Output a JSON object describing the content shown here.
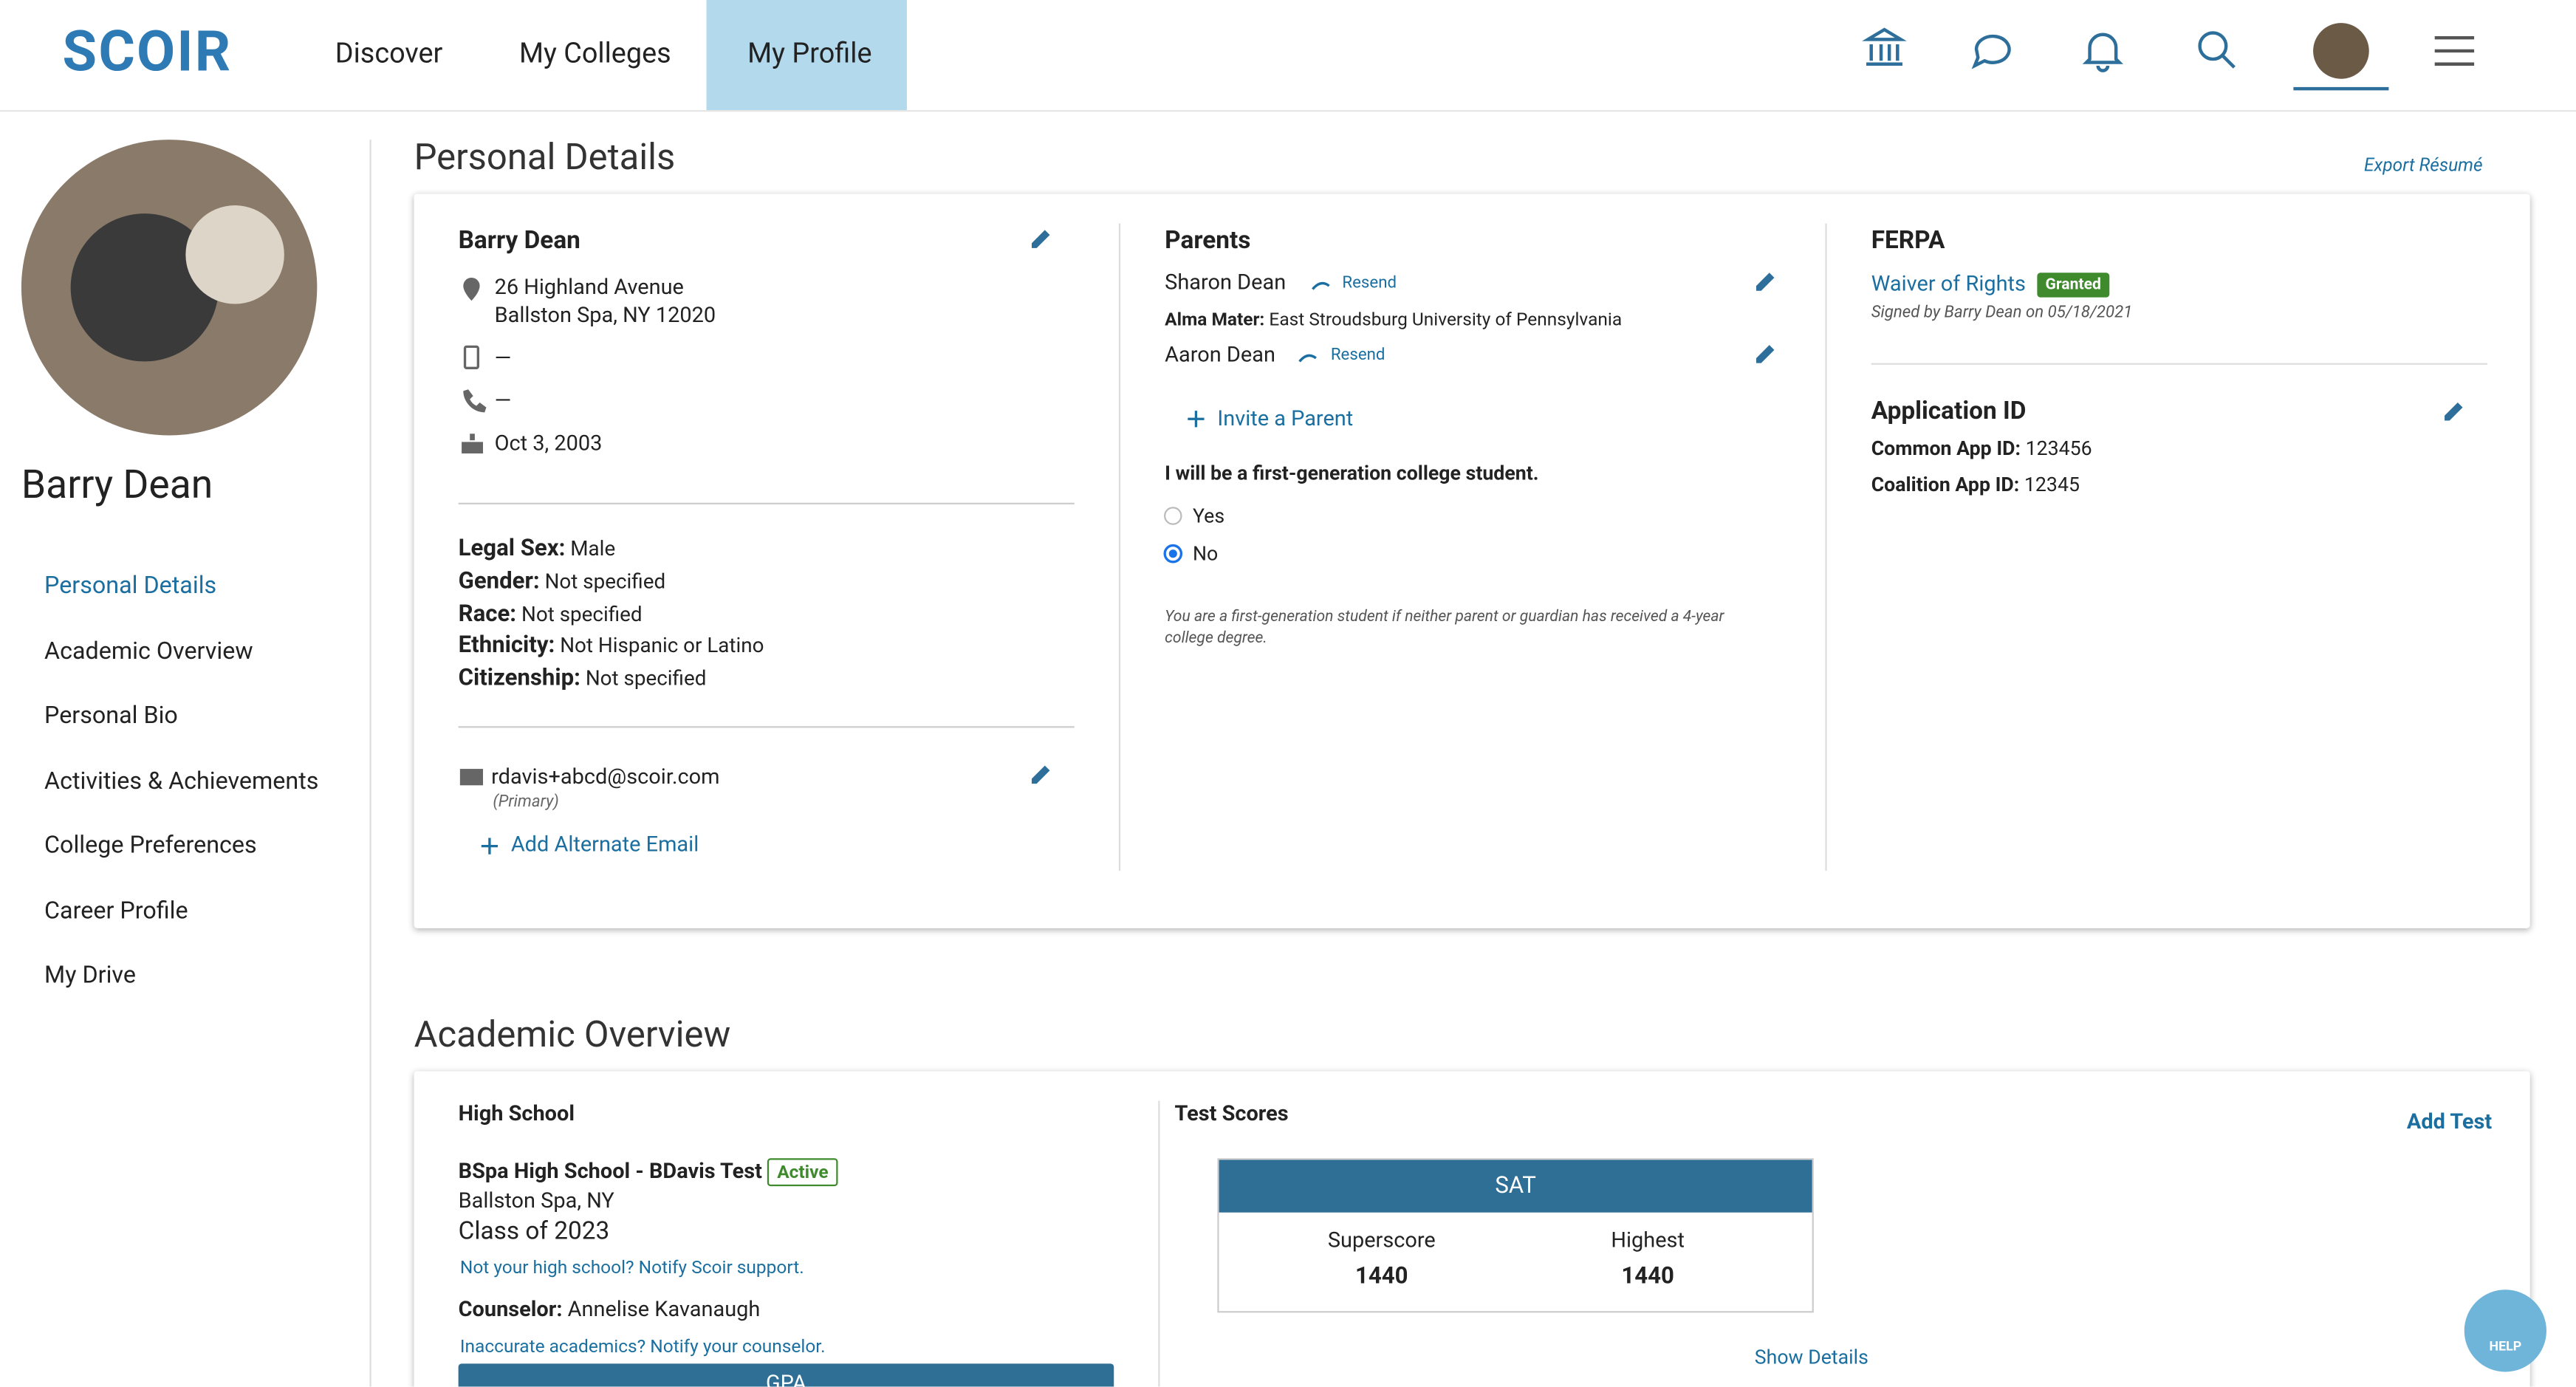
{
  "nav": {
    "brand": "SCOIR",
    "items": [
      "Discover",
      "My Colleges",
      "My Profile"
    ]
  },
  "profile": {
    "name": "Barry Dean",
    "links": [
      "Personal Details",
      "Academic Overview",
      "Personal Bio",
      "Activities & Achievements",
      "College Preferences",
      "Career Profile",
      "My Drive"
    ]
  },
  "personal_details": {
    "heading": "Personal Details",
    "export": "Export Résumé",
    "contact": {
      "name": "Barry Dean",
      "address": [
        "26 Highland Avenue",
        "Ballston Spa, NY 12020"
      ],
      "mobile": "—",
      "phone": "—",
      "birthday": "Oct 3, 2003"
    },
    "demographics": [
      {
        "label": "Legal Sex:",
        "value": "Male"
      },
      {
        "label": "Gender:",
        "value": "Not specified"
      },
      {
        "label": "Race:",
        "value": "Not specified"
      },
      {
        "label": "Ethnicity:",
        "value": "Not Hispanic or Latino"
      },
      {
        "label": "Citizenship:",
        "value": "Not specified"
      }
    ],
    "email": {
      "address": "rdavis+abcd@scoir.com",
      "note": "(Primary)",
      "add": "Add Alternate Email"
    },
    "parents": {
      "heading": "Parents",
      "list": [
        {
          "name": "Sharon Dean",
          "resend": "Resend"
        },
        {
          "name": "Aaron Dean",
          "resend": "Resend"
        }
      ],
      "alma_label": "Alma Mater:",
      "alma_value": "East Stroudsburg University of Pennsylvania",
      "invite": "Invite a Parent",
      "question": "I will be a first-generation college student.",
      "options": [
        "Yes",
        "No"
      ],
      "note": "You are a first-generation student if neither parent or guardian has received a 4-year college degree."
    },
    "ferpa": {
      "heading": "FERPA",
      "link": "Waiver of Rights",
      "badge": "Granted",
      "signed": "Signed by Barry Dean on 05/18/2021"
    },
    "application": {
      "heading": "Application ID",
      "rows": [
        {
          "label": "Common App ID:",
          "value": "123456"
        },
        {
          "label": "Coalition App ID:",
          "value": "12345"
        }
      ]
    }
  },
  "academic": {
    "heading": "Academic Overview",
    "high_school": {
      "heading": "High School",
      "school": "BSpa High School - BDavis Test",
      "badge": "Active",
      "location": "Ballston Spa, NY",
      "class": "Class of 2023",
      "notify": "Not your high school? Notify Scoir support.",
      "counselor_label": "Counselor:",
      "counselor": "Annelise Kavanaugh",
      "inaccurate": "Inaccurate academics? Notify your counselor.",
      "gpa": "GPA"
    },
    "tests": {
      "heading": "Test Scores",
      "add": "Add Test",
      "card": "SAT",
      "scores": [
        {
          "label": "Superscore",
          "value": "1440"
        },
        {
          "label": "Highest",
          "value": "1440"
        }
      ],
      "details": "Show Details"
    }
  },
  "help": "HELP"
}
